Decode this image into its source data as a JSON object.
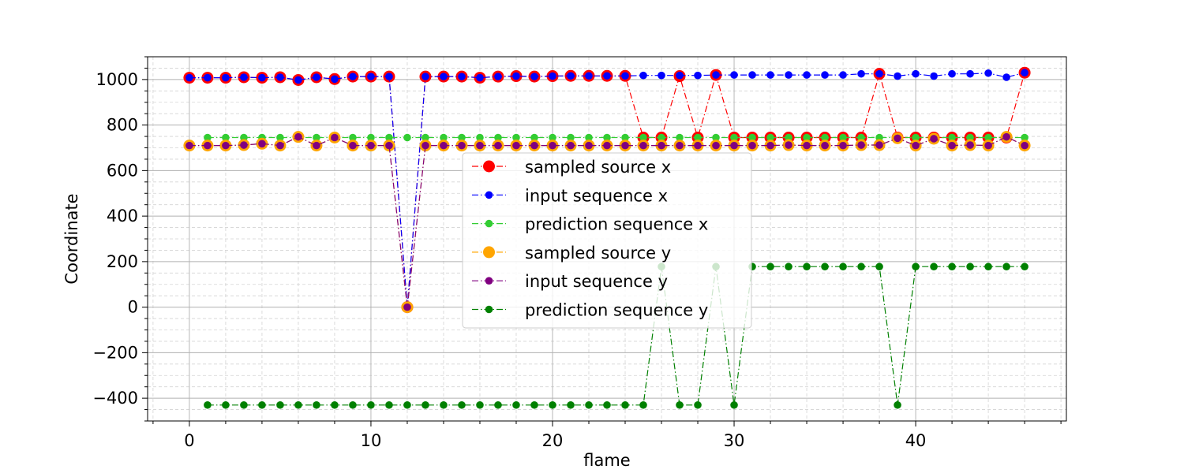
{
  "chart_data": {
    "type": "line",
    "xlabel": "flame",
    "ylabel": "Coordinate",
    "xlim": [
      -2.3,
      48.3
    ],
    "ylim": [
      -500,
      1100
    ],
    "x_ticks": [
      0,
      10,
      20,
      30,
      40
    ],
    "y_ticks": [
      -400,
      -200,
      0,
      200,
      400,
      600,
      800,
      1000
    ],
    "y_tick_labels": [
      "−400",
      "−200",
      "0",
      "200",
      "400",
      "600",
      "800",
      "1000"
    ],
    "grid": true,
    "minor_grid": true,
    "legend_position": "center",
    "series": [
      {
        "name": "sampled source x",
        "color": "#ff0000",
        "marker": "large",
        "x": [
          0,
          1,
          2,
          3,
          4,
          5,
          6,
          7,
          8,
          9,
          10,
          11,
          12,
          13,
          14,
          15,
          16,
          17,
          18,
          19,
          20,
          21,
          22,
          23,
          24,
          25,
          26,
          27,
          28,
          29,
          30,
          31,
          32,
          33,
          34,
          35,
          36,
          37,
          38,
          39,
          40,
          41,
          42,
          43,
          44,
          45,
          46
        ],
        "values": [
          1008,
          1008,
          1008,
          1010,
          1008,
          1010,
          998,
          1010,
          1002,
          1013,
          1013,
          1013,
          0,
          1013,
          1013,
          1013,
          1008,
          1013,
          1015,
          1013,
          1015,
          1016,
          1016,
          1016,
          1016,
          745,
          745,
          1015,
          745,
          1020,
          745,
          745,
          745,
          745,
          745,
          745,
          745,
          745,
          1025,
          745,
          745,
          745,
          745,
          745,
          745,
          745,
          1030
        ]
      },
      {
        "name": "input sequence x",
        "color": "#0000ff",
        "marker": "small",
        "x": [
          0,
          1,
          2,
          3,
          4,
          5,
          6,
          7,
          8,
          9,
          10,
          11,
          12,
          13,
          14,
          15,
          16,
          17,
          18,
          19,
          20,
          21,
          22,
          23,
          24,
          25,
          26,
          27,
          28,
          29,
          30,
          31,
          32,
          33,
          34,
          35,
          36,
          37,
          38,
          39,
          40,
          41,
          42,
          43,
          44,
          45,
          46
        ],
        "values": [
          1008,
          1008,
          1008,
          1010,
          1008,
          1010,
          998,
          1010,
          1002,
          1013,
          1013,
          1013,
          0,
          1013,
          1013,
          1013,
          1008,
          1013,
          1015,
          1013,
          1015,
          1016,
          1016,
          1016,
          1016,
          1018,
          1018,
          1018,
          1018,
          1020,
          1020,
          1020,
          1020,
          1020,
          1020,
          1020,
          1020,
          1025,
          1025,
          1015,
          1025,
          1015,
          1025,
          1025,
          1028,
          1010,
          1030
        ]
      },
      {
        "name": "prediction sequence x",
        "color": "#32cd32",
        "marker": "small",
        "x": [
          1,
          2,
          3,
          4,
          5,
          6,
          7,
          8,
          9,
          10,
          11,
          12,
          13,
          14,
          15,
          16,
          17,
          18,
          19,
          20,
          21,
          22,
          23,
          24,
          25,
          26,
          27,
          28,
          29,
          30,
          31,
          32,
          33,
          34,
          35,
          36,
          37,
          38,
          39,
          40,
          41,
          42,
          43,
          44,
          45,
          46
        ],
        "values": [
          745,
          745,
          745,
          745,
          745,
          745,
          745,
          745,
          745,
          745,
          745,
          745,
          745,
          745,
          745,
          745,
          745,
          745,
          745,
          745,
          745,
          745,
          745,
          745,
          745,
          745,
          745,
          745,
          745,
          745,
          745,
          745,
          745,
          745,
          745,
          745,
          745,
          745,
          745,
          745,
          745,
          745,
          745,
          745,
          745,
          745
        ]
      },
      {
        "name": "sampled source y",
        "color": "#ffa500",
        "marker": "large",
        "x": [
          0,
          1,
          2,
          3,
          4,
          5,
          6,
          7,
          8,
          9,
          10,
          11,
          12,
          13,
          14,
          15,
          16,
          17,
          18,
          19,
          20,
          21,
          22,
          23,
          24,
          25,
          26,
          27,
          28,
          29,
          30,
          31,
          32,
          33,
          34,
          35,
          36,
          37,
          38,
          39,
          40,
          41,
          42,
          43,
          44,
          45,
          46
        ],
        "values": [
          710,
          710,
          710,
          712,
          718,
          710,
          748,
          710,
          745,
          710,
          710,
          710,
          0,
          710,
          710,
          710,
          710,
          710,
          710,
          710,
          710,
          710,
          710,
          710,
          710,
          710,
          710,
          710,
          710,
          710,
          710,
          710,
          710,
          712,
          710,
          710,
          710,
          712,
          712,
          742,
          710,
          740,
          710,
          712,
          710,
          748,
          710
        ]
      },
      {
        "name": "input sequence y",
        "color": "#800080",
        "marker": "small",
        "x": [
          0,
          1,
          2,
          3,
          4,
          5,
          6,
          7,
          8,
          9,
          10,
          11,
          12,
          13,
          14,
          15,
          16,
          17,
          18,
          19,
          20,
          21,
          22,
          23,
          24,
          25,
          26,
          27,
          28,
          29,
          30,
          31,
          32,
          33,
          34,
          35,
          36,
          37,
          38,
          39,
          40,
          41,
          42,
          43,
          44,
          45,
          46
        ],
        "values": [
          710,
          710,
          710,
          712,
          718,
          710,
          748,
          710,
          745,
          710,
          710,
          710,
          0,
          710,
          710,
          710,
          710,
          710,
          710,
          710,
          710,
          710,
          710,
          710,
          710,
          710,
          710,
          710,
          710,
          710,
          710,
          710,
          710,
          712,
          710,
          710,
          710,
          712,
          712,
          742,
          710,
          740,
          710,
          712,
          710,
          748,
          710
        ]
      },
      {
        "name": "prediction sequence y",
        "color": "#008000",
        "marker": "small",
        "x": [
          1,
          2,
          3,
          4,
          5,
          6,
          7,
          8,
          9,
          10,
          11,
          12,
          13,
          14,
          15,
          16,
          17,
          18,
          19,
          20,
          21,
          22,
          23,
          24,
          25,
          26,
          27,
          28,
          29,
          30,
          31,
          32,
          33,
          34,
          35,
          36,
          37,
          38,
          39,
          40,
          41,
          42,
          43,
          44,
          45,
          46
        ],
        "values": [
          -430,
          -430,
          -430,
          -430,
          -430,
          -430,
          -430,
          -430,
          -430,
          -430,
          -430,
          -430,
          -430,
          -430,
          -430,
          -430,
          -430,
          -430,
          -430,
          -430,
          -430,
          -430,
          -430,
          -430,
          -430,
          178,
          -430,
          -430,
          178,
          -430,
          178,
          178,
          178,
          178,
          178,
          178,
          178,
          178,
          -430,
          178,
          178,
          178,
          178,
          178,
          178,
          178
        ]
      }
    ]
  }
}
